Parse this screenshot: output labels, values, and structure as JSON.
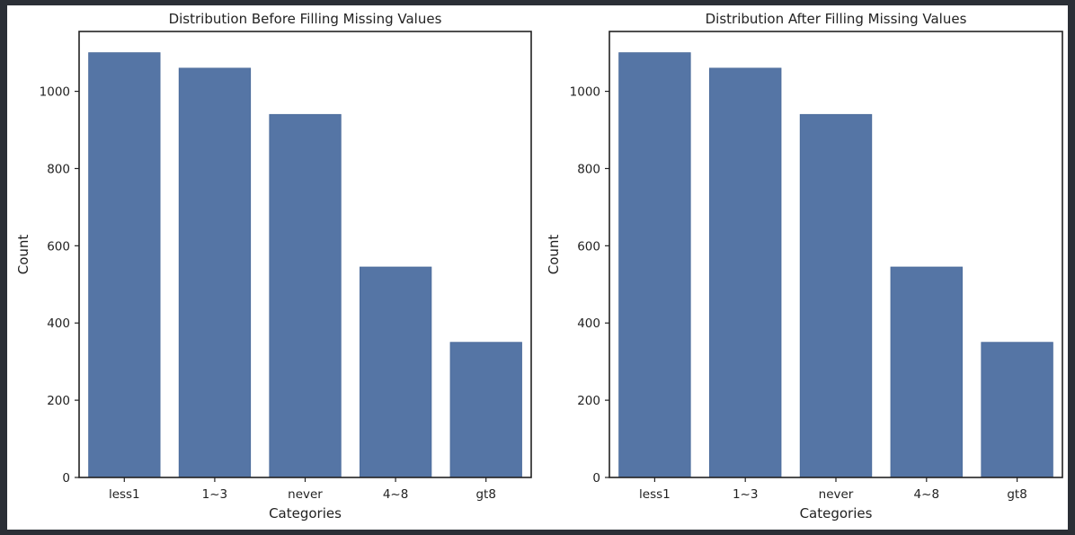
{
  "colors": {
    "bar": "#5575a5",
    "bar_edge": "#4a6a9a"
  },
  "chart_data": [
    {
      "type": "bar",
      "title": "Distribution Before Filling Missing Values",
      "xlabel": "Categories",
      "ylabel": "Count",
      "categories": [
        "less1",
        "1~3",
        "never",
        "4~8",
        "gt8"
      ],
      "values": [
        1100,
        1060,
        940,
        545,
        350
      ],
      "yticks": [
        0,
        200,
        400,
        600,
        800,
        1000
      ],
      "ylim": [
        0,
        1155
      ],
      "grid": false,
      "legend": "none"
    },
    {
      "type": "bar",
      "title": "Distribution After Filling Missing Values",
      "xlabel": "Categories",
      "ylabel": "Count",
      "categories": [
        "less1",
        "1~3",
        "never",
        "4~8",
        "gt8"
      ],
      "values": [
        1100,
        1060,
        940,
        545,
        350
      ],
      "yticks": [
        0,
        200,
        400,
        600,
        800,
        1000
      ],
      "ylim": [
        0,
        1155
      ],
      "grid": false,
      "legend": "none"
    }
  ]
}
